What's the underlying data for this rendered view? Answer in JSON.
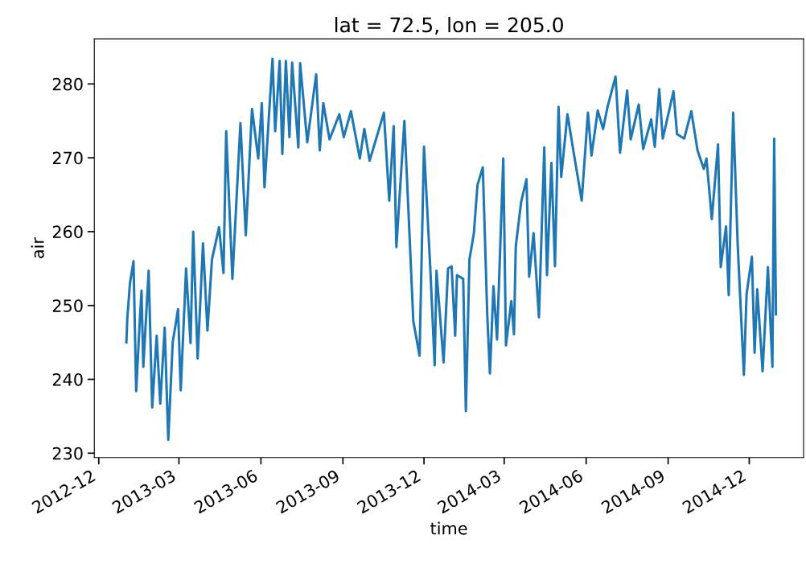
{
  "chart_data": {
    "type": "line",
    "title": "lat = 72.5, lon = 205.0",
    "xlabel": "time",
    "ylabel": "air",
    "x": [
      "2013-01-01",
      "2013-01-02",
      "2013-01-05",
      "2013-01-09",
      "2013-01-12",
      "2013-01-16",
      "2013-01-18",
      "2013-01-20",
      "2013-01-26",
      "2013-01-30",
      "2013-02-04",
      "2013-02-08",
      "2013-02-13",
      "2013-02-17",
      "2013-02-22",
      "2013-02-28",
      "2013-03-03",
      "2013-03-09",
      "2013-03-14",
      "2013-03-17",
      "2013-03-22",
      "2013-03-28",
      "2013-04-02",
      "2013-04-07",
      "2013-04-15",
      "2013-04-20",
      "2013-04-23",
      "2013-04-30",
      "2013-05-09",
      "2013-05-15",
      "2013-05-22",
      "2013-05-29",
      "2013-06-02",
      "2013-06-05",
      "2013-06-14",
      "2013-06-17",
      "2013-06-22",
      "2013-06-25",
      "2013-06-29",
      "2013-07-03",
      "2013-07-06",
      "2013-07-13",
      "2013-07-15",
      "2013-07-23",
      "2013-08-02",
      "2013-08-06",
      "2013-08-10",
      "2013-08-17",
      "2013-08-28",
      "2013-09-02",
      "2013-09-10",
      "2013-09-20",
      "2013-09-25",
      "2013-10-01",
      "2013-10-17",
      "2013-10-23",
      "2013-10-28",
      "2013-10-31",
      "2013-11-09",
      "2013-11-16",
      "2013-11-19",
      "2013-11-26",
      "2013-12-01",
      "2013-12-08",
      "2013-12-13",
      "2013-12-15",
      "2013-12-23",
      "2013-12-28",
      "2014-01-01",
      "2014-01-05",
      "2014-01-07",
      "2014-01-14",
      "2014-01-17",
      "2014-01-21",
      "2014-01-26",
      "2014-01-30",
      "2014-02-05",
      "2014-02-10",
      "2014-02-13",
      "2014-02-17",
      "2014-02-21",
      "2014-02-24",
      "2014-02-28",
      "2014-03-03",
      "2014-03-09",
      "2014-03-12",
      "2014-03-14",
      "2014-03-20",
      "2014-03-26",
      "2014-03-29",
      "2014-04-03",
      "2014-04-09",
      "2014-04-15",
      "2014-04-18",
      "2014-04-23",
      "2014-04-27",
      "2014-05-01",
      "2014-05-04",
      "2014-05-11",
      "2014-05-18",
      "2014-05-27",
      "2014-06-03",
      "2014-06-07",
      "2014-06-14",
      "2014-06-20",
      "2014-06-25",
      "2014-07-04",
      "2014-07-09",
      "2014-07-17",
      "2014-07-21",
      "2014-07-30",
      "2014-08-04",
      "2014-08-13",
      "2014-08-17",
      "2014-08-22",
      "2014-08-26",
      "2014-09-07",
      "2014-09-11",
      "2014-09-19",
      "2014-09-27",
      "2014-10-04",
      "2014-10-11",
      "2014-10-14",
      "2014-10-20",
      "2014-10-27",
      "2014-10-30",
      "2014-11-05",
      "2014-11-08",
      "2014-11-13",
      "2014-11-18",
      "2014-11-25",
      "2014-11-28",
      "2014-12-04",
      "2014-12-07",
      "2014-12-10",
      "2014-12-16",
      "2014-12-22",
      "2014-12-27",
      "2014-12-29",
      "2014-12-31"
    ],
    "series": [
      {
        "color": "#1f77b4",
        "values": [
          245.0,
          248.2,
          253.0,
          256.0,
          238.4,
          247.9,
          252.0,
          241.7,
          254.7,
          236.2,
          245.9,
          236.7,
          247.0,
          231.8,
          245.0,
          249.5,
          238.5,
          255.0,
          244.9,
          260.0,
          242.8,
          258.4,
          246.6,
          256.2,
          260.6,
          254.4,
          273.6,
          253.6,
          274.7,
          259.5,
          276.6,
          269.9,
          277.4,
          266.0,
          283.4,
          273.6,
          283.1,
          270.5,
          283.1,
          272.8,
          282.9,
          271.4,
          282.8,
          272.1,
          281.3,
          271.0,
          277.4,
          272.5,
          275.9,
          272.8,
          276.3,
          269.9,
          273.9,
          269.6,
          276.1,
          264.2,
          274.3,
          257.9,
          275.0,
          256.2,
          247.9,
          243.2,
          271.5,
          255.2,
          241.9,
          254.7,
          242.3,
          255.0,
          255.3,
          245.9,
          254.1,
          253.6,
          235.7,
          256.2,
          259.8,
          266.3,
          268.7,
          248.7,
          240.8,
          252.6,
          245.4,
          256.0,
          269.9,
          244.6,
          250.6,
          246.1,
          258.0,
          264.0,
          267.1,
          253.9,
          259.8,
          248.4,
          271.4,
          254.1,
          269.3,
          255.3,
          276.9,
          267.4,
          275.9,
          270.7,
          264.2,
          276.1,
          270.3,
          276.4,
          273.9,
          276.9,
          281.0,
          270.7,
          279.1,
          272.5,
          277.2,
          271.2,
          275.2,
          271.5,
          279.3,
          272.6,
          279.0,
          273.2,
          272.6,
          276.3,
          271.0,
          268.5,
          269.9,
          261.7,
          271.8,
          255.2,
          260.7,
          251.4,
          276.1,
          258.4,
          240.6,
          251.5,
          256.6,
          243.6,
          252.2,
          241.1,
          255.2,
          241.7,
          272.6,
          248.8
        ]
      }
    ],
    "xlim": [
      "2012-11-26",
      "2015-01-31"
    ],
    "xticks": [
      {
        "value": "2012-12-01",
        "label": "2012-12"
      },
      {
        "value": "2013-03-01",
        "label": "2013-03"
      },
      {
        "value": "2013-06-01",
        "label": "2013-06"
      },
      {
        "value": "2013-09-01",
        "label": "2013-09"
      },
      {
        "value": "2013-12-01",
        "label": "2013-12"
      },
      {
        "value": "2014-03-01",
        "label": "2014-03"
      },
      {
        "value": "2014-06-01",
        "label": "2014-06"
      },
      {
        "value": "2014-09-01",
        "label": "2014-09"
      },
      {
        "value": "2014-12-01",
        "label": "2014-12"
      }
    ],
    "ylim": [
      229.4,
      286.1
    ],
    "yticks": [
      230,
      240,
      250,
      260,
      270,
      280
    ],
    "grid": false,
    "legend": false
  }
}
